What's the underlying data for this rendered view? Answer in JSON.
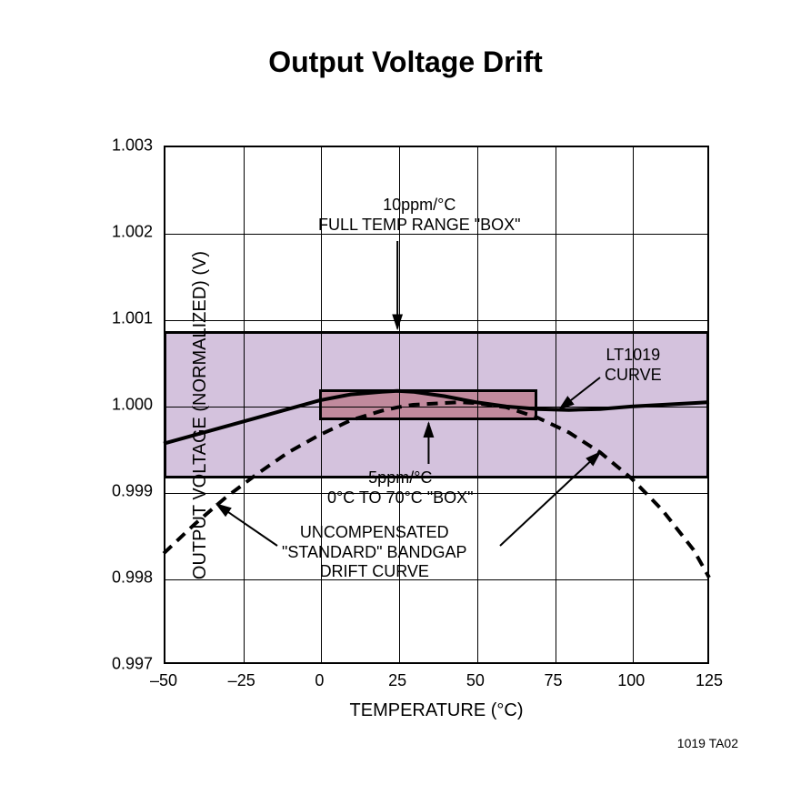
{
  "title": "Output Voltage Drift",
  "figure_id": "1019 TA02",
  "axes": {
    "xlabel": "TEMPERATURE (°C)",
    "ylabel": "OUTPUT VOLTAGE (NORMALIZED) (V)",
    "xlim": [
      -50,
      125
    ],
    "ylim": [
      0.997,
      1.003
    ],
    "xticks": [
      -50,
      -25,
      0,
      25,
      50,
      75,
      100,
      125
    ],
    "xtick_labels": [
      "–50",
      "–25",
      "0",
      "25",
      "50",
      "75",
      "100",
      "125"
    ],
    "yticks": [
      0.997,
      0.998,
      0.999,
      1.0,
      1.001,
      1.002,
      1.003
    ],
    "ytick_labels": [
      "0.997",
      "0.998",
      "0.999",
      "1.000",
      "1.001",
      "1.002",
      "1.003"
    ]
  },
  "boxes": {
    "large": {
      "x_range": [
        -50,
        125
      ],
      "y_range": [
        0.99915,
        1.00085
      ],
      "fill": "#d4c2dd",
      "border": "#000000",
      "label": "10ppm/°C\nFULL TEMP RANGE \"BOX\""
    },
    "small": {
      "x_range": [
        0,
        70
      ],
      "y_range": [
        0.99982,
        1.00018
      ],
      "fill": "#c18a9d",
      "border": "#000000",
      "label": "5ppm/°C\n0°C TO 70°C \"BOX\""
    }
  },
  "curves": {
    "lt1019": {
      "label": "LT1019\nCURVE",
      "color": "#000000",
      "width": 4,
      "dash": "none",
      "points": [
        [
          -50,
          0.99955
        ],
        [
          -40,
          0.99965
        ],
        [
          -30,
          0.99975
        ],
        [
          -20,
          0.99985
        ],
        [
          -10,
          0.99995
        ],
        [
          0,
          1.00005
        ],
        [
          10,
          1.00012
        ],
        [
          20,
          1.00015
        ],
        [
          25,
          1.00016
        ],
        [
          30,
          1.00015
        ],
        [
          40,
          1.0001
        ],
        [
          50,
          1.00003
        ],
        [
          60,
          0.99998
        ],
        [
          70,
          0.99995
        ],
        [
          80,
          0.99994
        ],
        [
          90,
          0.99995
        ],
        [
          100,
          0.99998
        ],
        [
          110,
          1.0
        ],
        [
          120,
          1.00002
        ],
        [
          125,
          1.00003
        ]
      ]
    },
    "uncompensated": {
      "label": "UNCOMPENSATED\n\"STANDARD\" BANDGAP\nDRIFT CURVE",
      "color": "#000000",
      "width": 4,
      "dash": "12,8",
      "points": [
        [
          -50,
          0.99828
        ],
        [
          -40,
          0.99862
        ],
        [
          -30,
          0.99893
        ],
        [
          -20,
          0.9992
        ],
        [
          -10,
          0.99945
        ],
        [
          0,
          0.99965
        ],
        [
          10,
          0.99982
        ],
        [
          20,
          0.99993
        ],
        [
          25,
          0.99997
        ],
        [
          30,
          1.0
        ],
        [
          40,
          1.00002
        ],
        [
          45,
          1.00003
        ],
        [
          50,
          1.00002
        ],
        [
          60,
          0.99997
        ],
        [
          70,
          0.99985
        ],
        [
          80,
          0.99968
        ],
        [
          90,
          0.99945
        ],
        [
          100,
          0.99915
        ],
        [
          110,
          0.99878
        ],
        [
          120,
          0.99832
        ],
        [
          125,
          0.998
        ]
      ]
    }
  },
  "annotations": {
    "box10_label_line1": "10ppm/°C",
    "box10_label_line2": "FULL TEMP RANGE \"BOX\"",
    "box5_label_line1": "5ppm/°C",
    "box5_label_line2": "0°C TO 70°C \"BOX\"",
    "lt1019_line1": "LT1019",
    "lt1019_line2": "CURVE",
    "uncomp_line1": "UNCOMPENSATED",
    "uncomp_line2": "\"STANDARD\" BANDGAP",
    "uncomp_line3": "DRIFT CURVE"
  },
  "style": {
    "background": "#ffffff",
    "grid_color": "#000000",
    "title_fontsize": 32,
    "label_fontsize": 20,
    "tick_fontsize": 18,
    "annotation_fontsize": 18
  }
}
